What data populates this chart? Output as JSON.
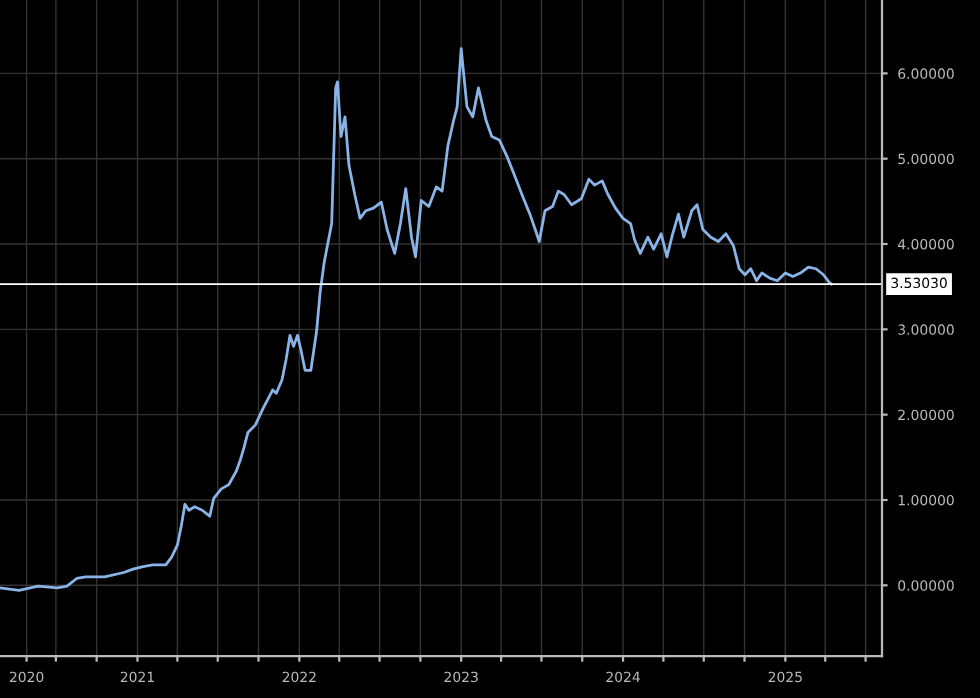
{
  "chart_data": {
    "type": "line",
    "x": [
      "2020-02-26",
      "2020-04-09",
      "2020-05-22",
      "2020-07-04",
      "2020-07-26",
      "2020-08-17",
      "2020-09-06",
      "2020-10-19",
      "2020-12-01",
      "2020-12-22",
      "2021-01-14",
      "2021-02-04",
      "2021-03-06",
      "2021-03-19",
      "2021-04-01",
      "2021-04-10",
      "2021-04-18",
      "2021-04-27",
      "2021-05-10",
      "2021-05-27",
      "2021-06-13",
      "2021-06-22",
      "2021-07-09",
      "2021-07-26",
      "2021-08-12",
      "2021-08-21",
      "2021-08-29",
      "2021-09-07",
      "2021-09-24",
      "2021-10-11",
      "2021-10-24",
      "2021-11-02",
      "2021-11-10",
      "2021-11-23",
      "2021-12-02",
      "2021-12-11",
      "2021-12-19",
      "2021-12-28",
      "2022-01-05",
      "2022-01-14",
      "2022-01-27",
      "2022-02-09",
      "2022-02-17",
      "2022-02-26",
      "2022-03-06",
      "2022-03-15",
      "2022-03-24",
      "2022-03-28",
      "2022-04-05",
      "2022-04-14",
      "2022-04-23",
      "2022-05-06",
      "2022-05-18",
      "2022-05-31",
      "2022-06-17",
      "2022-07-05",
      "2022-07-18",
      "2022-08-04",
      "2022-08-17",
      "2022-08-29",
      "2022-09-11",
      "2022-09-20",
      "2022-10-03",
      "2022-10-20",
      "2022-11-06",
      "2022-11-19",
      "2022-12-02",
      "2022-12-15",
      "2022-12-23",
      "2023-01-01",
      "2023-01-14",
      "2023-01-27",
      "2023-02-09",
      "2023-02-26",
      "2023-03-11",
      "2023-03-28",
      "2023-04-14",
      "2023-05-01",
      "2023-05-18",
      "2023-06-05",
      "2023-06-17",
      "2023-06-26",
      "2023-07-09",
      "2023-07-26",
      "2023-08-08",
      "2023-08-21",
      "2023-09-07",
      "2023-09-29",
      "2023-10-16",
      "2023-10-29",
      "2023-11-15",
      "2023-11-28",
      "2023-12-15",
      "2024-01-01",
      "2024-01-18",
      "2024-01-27",
      "2024-02-09",
      "2024-02-26",
      "2024-03-10",
      "2024-03-27",
      "2024-04-09",
      "2024-04-22",
      "2024-05-05",
      "2024-05-17",
      "2024-06-04",
      "2024-06-16",
      "2024-06-29",
      "2024-07-17",
      "2024-08-03",
      "2024-08-20",
      "2024-09-06",
      "2024-09-19",
      "2024-10-02",
      "2024-10-15",
      "2024-10-28",
      "2024-11-09",
      "2024-11-27",
      "2024-12-14",
      "2025-01-01",
      "2025-01-18",
      "2025-02-04",
      "2025-02-22",
      "2025-03-11",
      "2025-03-28",
      "2025-04-10",
      "2025-04-15"
    ],
    "series": [
      {
        "color": "#8ab4e8",
        "values": [
          -0.03,
          -0.06,
          -0.01,
          -0.03,
          -0.01,
          0.08,
          0.1,
          0.1,
          0.15,
          0.19,
          0.22,
          0.24,
          0.24,
          0.33,
          0.47,
          0.7,
          0.95,
          0.88,
          0.92,
          0.88,
          0.81,
          1.02,
          1.13,
          1.18,
          1.34,
          1.47,
          1.61,
          1.79,
          1.88,
          2.07,
          2.2,
          2.29,
          2.25,
          2.41,
          2.64,
          2.93,
          2.8,
          2.93,
          2.75,
          2.52,
          2.52,
          2.98,
          3.44,
          3.78,
          4.0,
          4.24,
          5.83,
          5.9,
          5.26,
          5.49,
          4.92,
          4.58,
          4.3,
          4.39,
          4.42,
          4.49,
          4.17,
          3.89,
          4.24,
          4.65,
          4.08,
          3.85,
          4.51,
          4.44,
          4.67,
          4.62,
          5.15,
          5.45,
          5.61,
          6.29,
          5.61,
          5.49,
          5.83,
          5.45,
          5.26,
          5.22,
          5.03,
          4.81,
          4.58,
          4.35,
          4.17,
          4.03,
          4.39,
          4.44,
          4.62,
          4.58,
          4.46,
          4.53,
          4.76,
          4.69,
          4.74,
          4.58,
          4.42,
          4.3,
          4.24,
          4.05,
          3.89,
          4.08,
          3.94,
          4.12,
          3.85,
          4.12,
          4.35,
          4.08,
          4.39,
          4.46,
          4.17,
          4.08,
          4.03,
          4.12,
          3.98,
          3.71,
          3.64,
          3.71,
          3.57,
          3.66,
          3.6,
          3.57,
          3.66,
          3.62,
          3.66,
          3.73,
          3.71,
          3.64,
          3.55,
          3.53
        ]
      }
    ],
    "xlim": [
      "2020-02-26",
      "2025-08-07"
    ],
    "xticks": [
      {
        "value": "2020-04-26",
        "label": "2020"
      },
      {
        "value": "2020-07-01",
        "label": null
      },
      {
        "value": "2020-10-01",
        "label": null
      },
      {
        "value": "2021-01-01",
        "label": "2021"
      },
      {
        "value": "2021-04-01",
        "label": null
      },
      {
        "value": "2021-07-01",
        "label": null
      },
      {
        "value": "2021-10-01",
        "label": null
      },
      {
        "value": "2022-01-01",
        "label": "2022"
      },
      {
        "value": "2022-04-01",
        "label": null
      },
      {
        "value": "2022-07-01",
        "label": null
      },
      {
        "value": "2022-10-01",
        "label": null
      },
      {
        "value": "2023-01-01",
        "label": "2023"
      },
      {
        "value": "2023-04-01",
        "label": null
      },
      {
        "value": "2023-07-01",
        "label": null
      },
      {
        "value": "2023-10-01",
        "label": null
      },
      {
        "value": "2024-01-01",
        "label": "2024"
      },
      {
        "value": "2024-04-01",
        "label": null
      },
      {
        "value": "2024-07-01",
        "label": null
      },
      {
        "value": "2024-10-01",
        "label": null
      },
      {
        "value": "2025-01-01",
        "label": "2025"
      },
      {
        "value": "2025-04-01",
        "label": null
      },
      {
        "value": "2025-07-01",
        "label": null
      }
    ],
    "ylim": [
      -0.83,
      6.86
    ],
    "yticks": [
      {
        "value": 0,
        "label": "0.00000"
      },
      {
        "value": 1,
        "label": "1.00000"
      },
      {
        "value": 2,
        "label": "2.00000"
      },
      {
        "value": 3,
        "label": "3.00000"
      },
      {
        "value": 4,
        "label": "4.00000"
      },
      {
        "value": 5,
        "label": "5.00000"
      },
      {
        "value": 6,
        "label": "6.00000"
      }
    ],
    "ref_lines": [
      {
        "axis": "y",
        "value": 3.5303,
        "label": "3.53030",
        "color": "#ffffff"
      }
    ],
    "grid": true
  }
}
